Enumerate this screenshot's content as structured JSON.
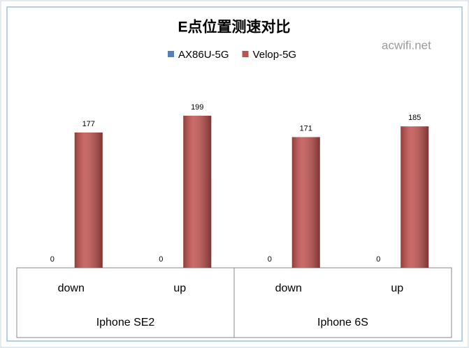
{
  "chart_data": {
    "type": "bar",
    "title": "E点位置测速对比",
    "watermark": "acwifi.net",
    "categories": [
      "down",
      "up",
      "down",
      "up"
    ],
    "groups": [
      "Iphone SE2",
      "Iphone 6S"
    ],
    "series": [
      {
        "name": "AX86U-5G",
        "color": "#4f81bd",
        "values": [
          0,
          0,
          0,
          0
        ]
      },
      {
        "name": "Velop-5G",
        "color": "#c0504d",
        "values": [
          177,
          199,
          171,
          185
        ]
      }
    ],
    "ylim": [
      0,
      250
    ],
    "legend": "top"
  }
}
